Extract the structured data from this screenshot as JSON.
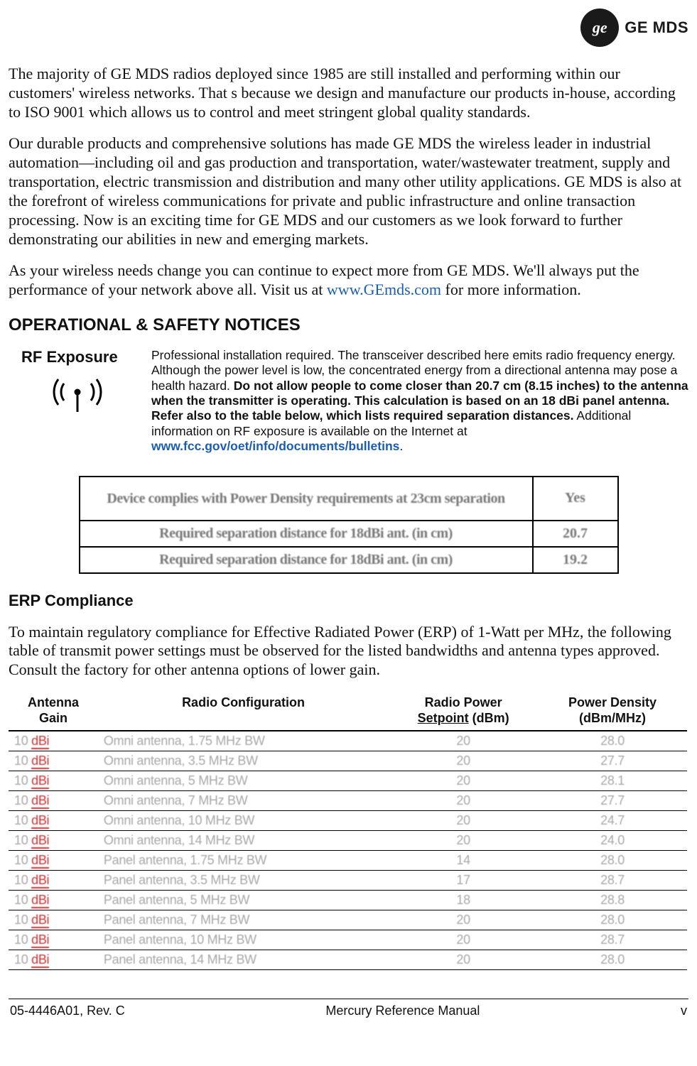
{
  "logo": {
    "monogram": "ge",
    "brand": "GE MDS"
  },
  "para1": "The majority of GE MDS radios deployed since 1985 are still installed and performing within our customers' wireless networks. That   s because we design and manufacture our products in-house, according to ISO 9001 which allows us to control and meet stringent global quality standards.",
  "para2": "Our durable products and comprehensive solutions has made GE MDS the wireless leader in industrial automation—including oil and gas production and transportation, water/wastewater treatment, supply and transportation, electric transmission and distribution and many other utility applications. GE MDS is also at the forefront of wireless communications for private and public infrastructure and online transaction processing. Now is an exciting time for GE MDS and our customers as we look forward to further demonstrating our abilities in new and emerging markets.",
  "para3_a": "As your wireless needs change you can continue to expect more from GE MDS. We'll always put the performance of your network above all. Visit us at ",
  "para3_link": "www.GEmds.com",
  "para3_b": " for more information.",
  "heading_op": "OPERATIONAL & SAFETY NOTICES",
  "rf": {
    "title": "RF Exposure",
    "text_a": "Professional installation required. The transceiver described here emits radio frequency energy. Although the power level is low, the concentrated energy from a directional antenna may pose a health hazard. ",
    "text_bold": "Do not allow people to come closer than 20.7 cm (8.15 inches) to the antenna when the transmitter is operating. This calculation is based on an 18 dBi panel antenna. Refer also to the table below, which lists required separation distances.",
    "text_b": " Additional information on RF exposure is available on the Internet at ",
    "link": "www.fcc.gov/oet/info/documents/bulletins",
    "period": "."
  },
  "table1": {
    "rows": [
      {
        "label": "Device complies with Power Density requirements at 23cm separation",
        "value": "Yes"
      },
      {
        "label": "Required separation distance for 18dBi ant. (in cm)",
        "value": "20.7"
      },
      {
        "label": "Required separation distance for 18dBi ant. (in cm)",
        "value": "19.2"
      }
    ]
  },
  "heading_erp": "ERP Compliance",
  "erp_para": "To maintain regulatory compliance for Effective Radiated Power (ERP) of 1-Watt per MHz, the following table of transmit power settings must be observed for the listed bandwidths and antenna types approved. Consult the factory for other antenna options of lower gain.",
  "table2": {
    "headers": {
      "gain": "Antenna Gain",
      "conf": "Radio Configuration",
      "setp_l1": "Radio Power",
      "setp_l2": "Setpoint",
      "setp_unit": " (dBm)",
      "dens_l1": "Power Density",
      "dens_l2": "(dBm/MHz)"
    },
    "rows": [
      {
        "gain": "10",
        "gu": "dBi",
        "conf": "Omni antenna, 1.75 MHz BW",
        "setp": "20",
        "dens": "28.0"
      },
      {
        "gain": "10",
        "gu": "dBi",
        "conf": "Omni antenna, 3.5 MHz BW",
        "setp": "20",
        "dens": "27.7"
      },
      {
        "gain": "10",
        "gu": "dBi",
        "conf": "Omni antenna, 5 MHz BW",
        "setp": "20",
        "dens": "28.1"
      },
      {
        "gain": "10",
        "gu": "dBi",
        "conf": "Omni antenna, 7 MHz BW",
        "setp": "20",
        "dens": "27.7"
      },
      {
        "gain": "10",
        "gu": "dBi",
        "conf": "Omni antenna, 10 MHz BW",
        "setp": "20",
        "dens": "24.7"
      },
      {
        "gain": "10",
        "gu": "dBi",
        "conf": "Omni antenna, 14 MHz BW",
        "setp": "20",
        "dens": "24.0"
      },
      {
        "gain": "10",
        "gu": "dBi",
        "conf": "Panel antenna, 1.75 MHz BW",
        "setp": "14",
        "dens": "28.0"
      },
      {
        "gain": "10",
        "gu": "dBi",
        "conf": "Panel antenna, 3.5 MHz BW",
        "setp": "17",
        "dens": "28.7"
      },
      {
        "gain": "10",
        "gu": "dBi",
        "conf": "Panel antenna, 5 MHz BW",
        "setp": "18",
        "dens": "28.8"
      },
      {
        "gain": "10",
        "gu": "dBi",
        "conf": "Panel antenna, 7 MHz BW",
        "setp": "20",
        "dens": "28.0"
      },
      {
        "gain": "10",
        "gu": "dBi",
        "conf": "Panel antenna, 10 MHz BW",
        "setp": "20",
        "dens": "28.7"
      },
      {
        "gain": "10",
        "gu": "dBi",
        "conf": "Panel antenna, 14 MHz BW",
        "setp": "20",
        "dens": "28.0"
      }
    ]
  },
  "footer": {
    "left": "05-4446A01, Rev. C",
    "center": "Mercury Reference Manual",
    "right": "v"
  },
  "colors": {
    "link": "#1a5db3",
    "body": "#111111",
    "faded": "#a8a8a8",
    "red": "#c33333",
    "border": "#000000",
    "bg": "#ffffff"
  }
}
